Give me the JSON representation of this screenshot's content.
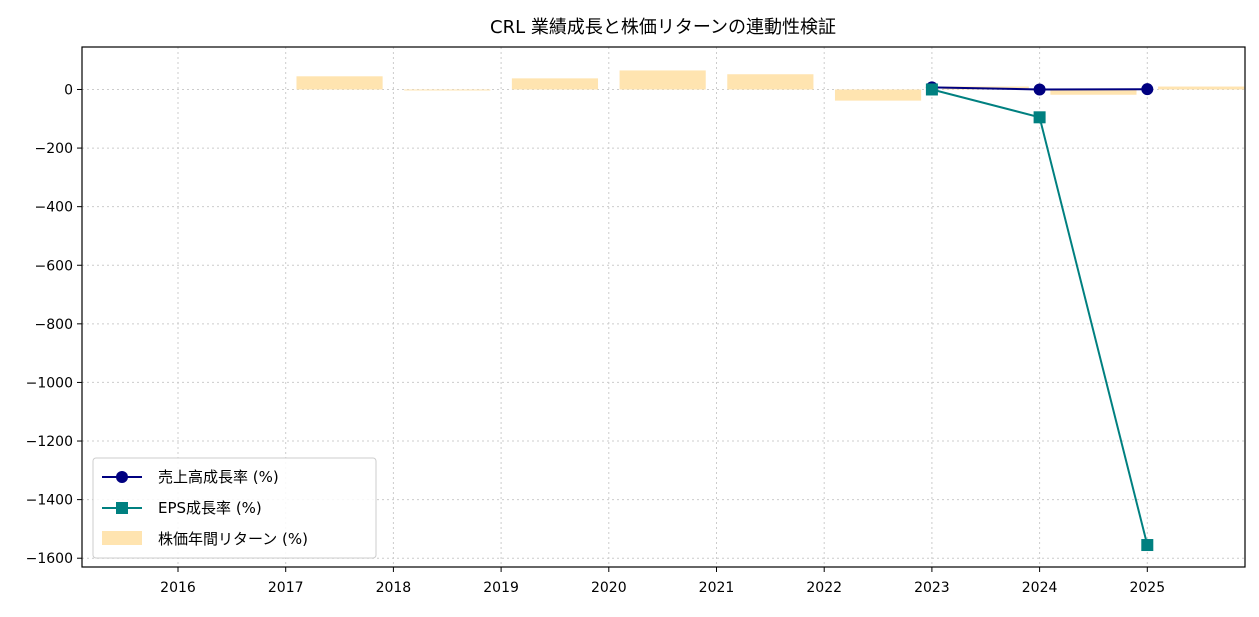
{
  "chart_data": {
    "type": "bar+line",
    "title": "CRL 業績成長と株価リターンの連動性検証",
    "xlabel": "",
    "ylabel": "",
    "categories": [
      "2016",
      "2017",
      "2018",
      "2019",
      "2020",
      "2021",
      "2022",
      "2023",
      "2024",
      "2025"
    ],
    "ylim": [
      -1630,
      145
    ],
    "yticks": [
      0,
      -200,
      -400,
      -600,
      -800,
      -1000,
      -1200,
      -1400,
      -1600
    ],
    "grid": true,
    "legend_position": "lower-left",
    "bars": {
      "name": "株価年間リターン (%)",
      "color": "#ffe4b0",
      "values": [
        0,
        45,
        -3,
        38,
        65,
        52,
        -38,
        10,
        -18,
        10
      ]
    },
    "series": [
      {
        "name": "売上高成長率 (%)",
        "color": "#000080",
        "marker": "circle",
        "values": [
          null,
          null,
          null,
          null,
          null,
          null,
          null,
          7,
          0,
          1
        ]
      },
      {
        "name": "EPS成長率 (%)",
        "color": "#008080",
        "marker": "square",
        "values": [
          null,
          null,
          null,
          null,
          null,
          null,
          null,
          0,
          -95,
          -1555
        ]
      }
    ]
  }
}
